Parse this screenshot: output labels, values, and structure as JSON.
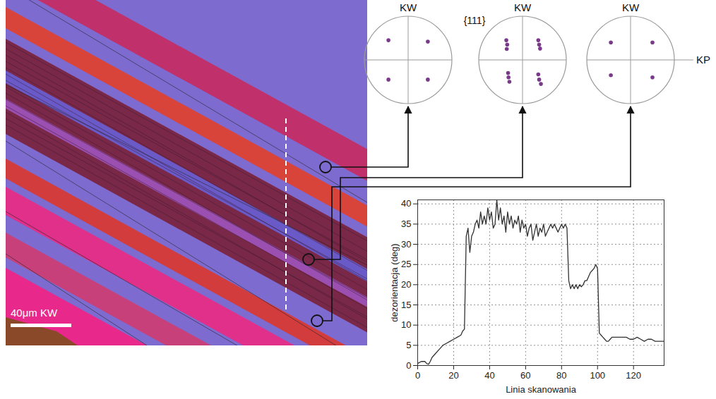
{
  "chart_data": {
    "type": "line",
    "x_label": "Linia skanowania",
    "y_label": "dezorientacja (deg)",
    "x": [
      0,
      2,
      4,
      5,
      6,
      7,
      8,
      10,
      12,
      14,
      16,
      18,
      20,
      22,
      24,
      25,
      26,
      27,
      28,
      29,
      30,
      31,
      32,
      33,
      34,
      35,
      36,
      37,
      38,
      39,
      40,
      41,
      42,
      43,
      44,
      45,
      46,
      47,
      48,
      49,
      50,
      51,
      52,
      53,
      54,
      55,
      56,
      57,
      58,
      59,
      60,
      61,
      62,
      63,
      64,
      65,
      66,
      67,
      68,
      69,
      70,
      71,
      72,
      73,
      74,
      75,
      76,
      77,
      78,
      79,
      80,
      81,
      82,
      83,
      84,
      85,
      86,
      87,
      88,
      89,
      90,
      91,
      92,
      93,
      94,
      95,
      96,
      97,
      98,
      99,
      100,
      101,
      102,
      103,
      104,
      105,
      106,
      107,
      108,
      110,
      112,
      114,
      116,
      118,
      120,
      122,
      124,
      126,
      128,
      130,
      132,
      134,
      137
    ],
    "values": [
      0.5,
      1,
      1,
      0.5,
      0.3,
      1,
      2,
      3,
      4,
      5,
      5.5,
      6,
      6.5,
      7,
      7.5,
      8.5,
      9,
      32,
      34,
      28,
      32,
      33,
      35,
      36,
      34,
      38,
      35,
      37,
      35,
      39,
      36,
      38,
      34,
      35,
      41,
      36,
      39,
      35,
      37,
      33,
      38,
      35,
      37,
      34,
      36,
      35,
      37,
      33,
      36,
      34,
      35,
      32,
      34,
      35,
      31,
      33,
      35,
      32,
      34,
      33,
      35,
      32,
      33,
      34,
      35,
      34,
      35,
      34,
      33,
      34,
      35,
      34,
      35,
      34,
      21,
      19,
      20,
      19,
      20,
      19,
      20,
      19.5,
      20,
      21,
      21,
      22,
      23,
      23.5,
      24,
      25,
      24,
      8,
      7.5,
      7,
      6.5,
      6,
      6,
      6.5,
      7,
      7,
      7,
      7,
      7,
      6.5,
      6.5,
      7,
      6.5,
      6,
      6.5,
      6.5,
      6,
      6,
      6
    ],
    "color": "#333333",
    "xlim": [
      0,
      137
    ],
    "ylim": [
      0,
      41
    ],
    "xticks": [
      0,
      20,
      40,
      60,
      80,
      100,
      120
    ],
    "yticks": [
      0,
      5,
      10,
      15,
      20,
      25,
      30,
      35,
      40
    ],
    "grid": true
  },
  "map": {
    "scale_label": "40μm KW"
  },
  "pole_figures": {
    "label": "{111}",
    "side_label": "KP",
    "color": "#7a3a8a",
    "figures": [
      {
        "top_label": "KW",
        "points": [
          [
            -0.45,
            0.45
          ],
          [
            0.45,
            0.42
          ],
          [
            -0.45,
            -0.45
          ],
          [
            0.45,
            -0.45
          ]
        ]
      },
      {
        "top_label": "KW",
        "points": [
          [
            -0.37,
            0.45
          ],
          [
            -0.35,
            0.35
          ],
          [
            -0.36,
            0.25
          ],
          [
            0.36,
            0.45
          ],
          [
            0.38,
            0.35
          ],
          [
            0.4,
            0.26
          ],
          [
            -0.33,
            -0.3
          ],
          [
            -0.32,
            -0.4
          ],
          [
            -0.3,
            -0.5
          ],
          [
            0.36,
            -0.33
          ],
          [
            0.38,
            -0.45
          ],
          [
            0.42,
            -0.55
          ]
        ]
      },
      {
        "top_label": "KW",
        "points": [
          [
            -0.45,
            0.4
          ],
          [
            0.5,
            0.4
          ],
          [
            -0.45,
            -0.35
          ],
          [
            0.5,
            -0.4
          ]
        ]
      }
    ]
  }
}
